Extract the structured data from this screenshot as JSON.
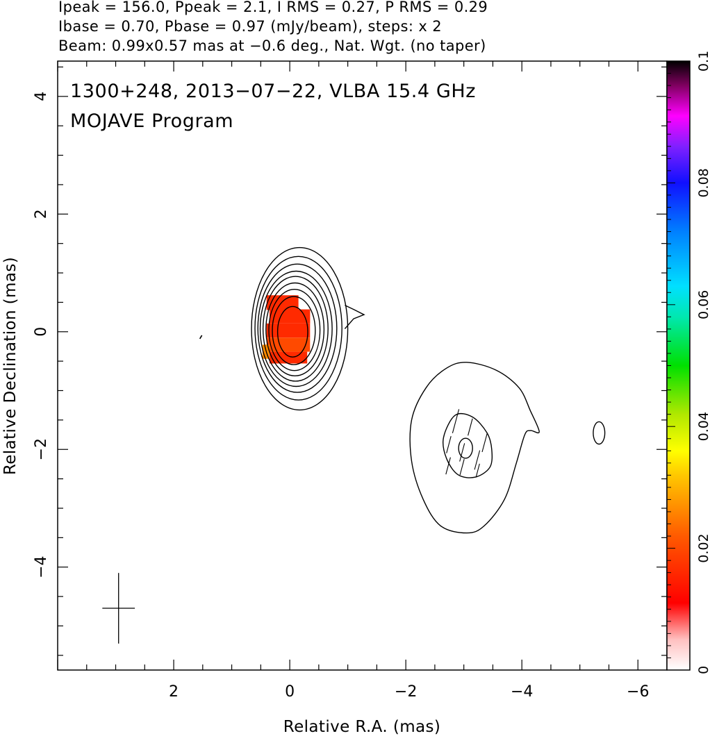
{
  "header": {
    "line1": "Ipeak = 156.0, Ppeak = 2.1, I RMS = 0.27, P RMS = 0.29",
    "line2": "Ibase = 0.70, Pbase = 0.97 (mJy/beam), steps: x 2",
    "line3": "Beam: 0.99x0.57 mas at −0.6 deg., Nat. Wgt. (no taper)"
  },
  "plot_title": {
    "line1": "1300+248, 2013−07−22, VLBA 15.4 GHz",
    "line2": "MOJAVE Program"
  },
  "chart_data": {
    "type": "contour",
    "xlabel": "Relative R.A. (mas)",
    "ylabel": "Relative Declination (mas)",
    "xlim": [
      4.0,
      -6.5
    ],
    "ylim": [
      -5.75,
      4.6
    ],
    "x_ticks": [
      2,
      0,
      -2,
      -4,
      -6
    ],
    "x_tick_labels": [
      "2",
      "0",
      "−2",
      "−4",
      "−6"
    ],
    "y_ticks": [
      4,
      2,
      0,
      -2,
      -4
    ],
    "y_tick_labels": [
      "4",
      "2",
      "0",
      "−2",
      "−4"
    ],
    "colorbar": {
      "min": 0,
      "max": 0.1,
      "ticks": [
        0,
        0.02,
        0.04,
        0.06,
        0.08,
        0.1
      ],
      "tick_labels": [
        "0",
        "0.02",
        "0.04",
        "0.06",
        "0.08",
        "0.1"
      ]
    },
    "core_contours": [
      {
        "cx": -0.05,
        "cy": 0.0,
        "rx": 0.26,
        "ry": 0.43
      },
      {
        "cx": -0.07,
        "cy": 0.02,
        "rx": 0.37,
        "ry": 0.58
      },
      {
        "cx": -0.08,
        "cy": 0.03,
        "rx": 0.44,
        "ry": 0.69
      },
      {
        "cx": -0.09,
        "cy": 0.04,
        "rx": 0.5,
        "ry": 0.79
      },
      {
        "cx": -0.1,
        "cy": 0.05,
        "rx": 0.56,
        "ry": 0.89
      },
      {
        "cx": -0.11,
        "cy": 0.05,
        "rx": 0.62,
        "ry": 0.98
      },
      {
        "cx": -0.13,
        "cy": 0.06,
        "rx": 0.68,
        "ry": 1.09
      },
      {
        "cx": -0.15,
        "cy": 0.06,
        "rx": 0.75,
        "ry": 1.22
      },
      {
        "cx": -0.17,
        "cy": 0.05,
        "rx": 0.83,
        "ry": 1.38
      }
    ],
    "jet_tail": [
      [
        -0.95,
        0.45
      ],
      [
        -1.1,
        0.38
      ],
      [
        -1.28,
        0.29
      ],
      [
        -1.1,
        0.22
      ],
      [
        -0.95,
        0.05
      ]
    ],
    "jet_outer_contour": [
      [
        -3.05,
        -0.52
      ],
      [
        -3.55,
        -0.65
      ],
      [
        -3.95,
        -0.95
      ],
      [
        -4.15,
        -1.35
      ],
      [
        -4.3,
        -1.7
      ],
      [
        -4.15,
        -1.68
      ],
      [
        -4.05,
        -1.75
      ],
      [
        -3.9,
        -2.25
      ],
      [
        -3.7,
        -2.85
      ],
      [
        -3.35,
        -3.3
      ],
      [
        -3.05,
        -3.42
      ],
      [
        -2.6,
        -3.3
      ],
      [
        -2.3,
        -2.85
      ],
      [
        -2.1,
        -2.2
      ],
      [
        -2.1,
        -1.5
      ],
      [
        -2.35,
        -0.95
      ],
      [
        -2.7,
        -0.62
      ]
    ],
    "jet_inner_contour": [
      [
        -2.85,
        -1.42
      ],
      [
        -3.15,
        -1.45
      ],
      [
        -3.4,
        -1.72
      ],
      [
        -3.48,
        -2.0
      ],
      [
        -3.45,
        -2.3
      ],
      [
        -3.2,
        -2.47
      ],
      [
        -2.9,
        -2.43
      ],
      [
        -2.7,
        -2.15
      ],
      [
        -2.65,
        -1.8
      ]
    ],
    "jet_peak_contour": {
      "cx": -3.03,
      "cy": -1.98,
      "rx": 0.12,
      "ry": 0.17
    },
    "knot_contour": {
      "cx": -5.33,
      "cy": -1.72,
      "rx": 0.1,
      "ry": 0.19
    },
    "polarization_vectors": [
      {
        "x": -2.86,
        "y": -1.52,
        "len": 0.42
      },
      {
        "x": -3.11,
        "y": -1.62,
        "len": 0.3
      },
      {
        "x": -3.36,
        "y": -1.88,
        "len": 0.34
      },
      {
        "x": -2.74,
        "y": -1.92,
        "len": 0.3
      },
      {
        "x": -2.97,
        "y": -2.05,
        "len": 0.32
      },
      {
        "x": -3.23,
        "y": -2.18,
        "len": 0.34
      },
      {
        "x": -2.73,
        "y": -2.28,
        "len": 0.3
      },
      {
        "x": -2.97,
        "y": -2.3,
        "len": 0.28
      },
      {
        "x": -3.24,
        "y": -2.36,
        "len": 0.24
      }
    ],
    "polarized_pixels_colors": [
      "#ff2a00",
      "#ff4a00",
      "#ff8a00"
    ],
    "noise_mark": {
      "x": 1.55,
      "y": -0.12
    },
    "beam_marker": {
      "x": 2.95,
      "y": -4.7,
      "half_width": 0.28,
      "half_height": 0.5
    }
  }
}
